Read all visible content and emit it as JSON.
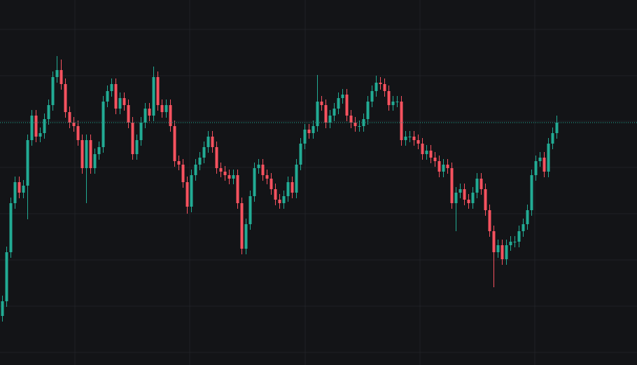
{
  "chart_data": {
    "type": "candlestick",
    "open": [
      70,
      91,
      161,
      231,
      261,
      246,
      256,
      321,
      356,
      326,
      331,
      351,
      371,
      411,
      421,
      401,
      361,
      346,
      341,
      321,
      281,
      321,
      281,
      301,
      311,
      376,
      391,
      401,
      366,
      381,
      371,
      346,
      301,
      321,
      346,
      366,
      356,
      411,
      371,
      361,
      371,
      341,
      291,
      286,
      261,
      226,
      271,
      286,
      296,
      311,
      326,
      311,
      281,
      276,
      271,
      266,
      271,
      231,
      166,
      201,
      241,
      281,
      286,
      271,
      266,
      251,
      236,
      231,
      241,
      261,
      246,
      286,
      316,
      336,
      331,
      341,
      376,
      371,
      346,
      356,
      366,
      381,
      386,
      356,
      346,
      341,
      341,
      351,
      376,
      391,
      403,
      401,
      391,
      371,
      376,
      376,
      321,
      326,
      326,
      321,
      316,
      301,
      306,
      296,
      291,
      276,
      286,
      281,
      231,
      246,
      251,
      236,
      231,
      246,
      266,
      251,
      221,
      191,
      161,
      171,
      151,
      171,
      176,
      176,
      191,
      201,
      221,
      271,
      291,
      296,
      276,
      316,
      331
    ],
    "high": [
      99,
      169,
      239,
      269,
      269,
      264,
      329,
      364,
      364,
      339,
      359,
      379,
      419,
      441,
      436,
      409,
      369,
      354,
      349,
      329,
      329,
      329,
      309,
      319,
      384,
      399,
      409,
      409,
      389,
      389,
      379,
      354,
      329,
      354,
      374,
      374,
      426,
      419,
      379,
      379,
      379,
      349,
      299,
      294,
      269,
      279,
      294,
      304,
      319,
      334,
      334,
      319,
      289,
      284,
      279,
      279,
      279,
      239,
      209,
      249,
      289,
      294,
      294,
      279,
      274,
      259,
      244,
      249,
      269,
      269,
      294,
      324,
      344,
      344,
      349,
      414,
      384,
      379,
      364,
      374,
      389,
      394,
      394,
      364,
      354,
      349,
      359,
      384,
      399,
      413,
      411,
      409,
      399,
      384,
      384,
      384,
      334,
      334,
      334,
      329,
      324,
      314,
      314,
      304,
      299,
      294,
      294,
      289,
      254,
      259,
      259,
      244,
      254,
      274,
      274,
      259,
      229,
      199,
      179,
      179,
      179,
      184,
      184,
      199,
      209,
      229,
      279,
      299,
      304,
      304,
      324,
      339,
      356
    ],
    "low": [
      62,
      83,
      153,
      223,
      238,
      238,
      208,
      313,
      318,
      318,
      323,
      343,
      363,
      403,
      393,
      353,
      338,
      333,
      313,
      273,
      231,
      273,
      273,
      293,
      303,
      368,
      383,
      358,
      358,
      363,
      338,
      293,
      293,
      313,
      338,
      348,
      348,
      363,
      353,
      353,
      333,
      283,
      278,
      253,
      216,
      218,
      263,
      278,
      288,
      303,
      303,
      273,
      268,
      263,
      258,
      258,
      223,
      158,
      158,
      193,
      233,
      273,
      263,
      258,
      243,
      228,
      223,
      223,
      233,
      238,
      238,
      278,
      308,
      323,
      323,
      333,
      363,
      338,
      338,
      348,
      358,
      373,
      348,
      338,
      333,
      333,
      333,
      343,
      368,
      383,
      393,
      383,
      363,
      363,
      368,
      313,
      313,
      318,
      313,
      308,
      293,
      293,
      288,
      283,
      268,
      268,
      273,
      223,
      191,
      238,
      228,
      223,
      223,
      238,
      243,
      213,
      183,
      111,
      153,
      143,
      143,
      163,
      168,
      168,
      183,
      193,
      213,
      263,
      283,
      268,
      268,
      308,
      323
    ],
    "close": [
      91,
      161,
      231,
      261,
      246,
      256,
      321,
      356,
      326,
      331,
      351,
      371,
      411,
      421,
      401,
      361,
      346,
      341,
      321,
      281,
      321,
      281,
      301,
      311,
      376,
      391,
      401,
      366,
      381,
      371,
      346,
      301,
      321,
      346,
      366,
      356,
      411,
      371,
      361,
      371,
      341,
      291,
      286,
      261,
      226,
      271,
      286,
      296,
      311,
      326,
      311,
      281,
      276,
      271,
      266,
      271,
      231,
      166,
      201,
      241,
      281,
      286,
      271,
      266,
      251,
      236,
      231,
      241,
      261,
      246,
      286,
      316,
      336,
      331,
      341,
      376,
      371,
      346,
      356,
      366,
      381,
      386,
      356,
      346,
      341,
      341,
      351,
      376,
      391,
      403,
      401,
      391,
      371,
      376,
      376,
      321,
      326,
      326,
      321,
      316,
      301,
      306,
      296,
      291,
      276,
      286,
      281,
      231,
      246,
      251,
      236,
      231,
      246,
      266,
      251,
      221,
      191,
      161,
      171,
      151,
      171,
      176,
      176,
      191,
      201,
      221,
      271,
      291,
      296,
      276,
      316,
      331,
      346
    ],
    "ylim": [
      0,
      521
    ],
    "up_color": "#22ab94",
    "down_color": "#f7525f",
    "grid": true
  }
}
